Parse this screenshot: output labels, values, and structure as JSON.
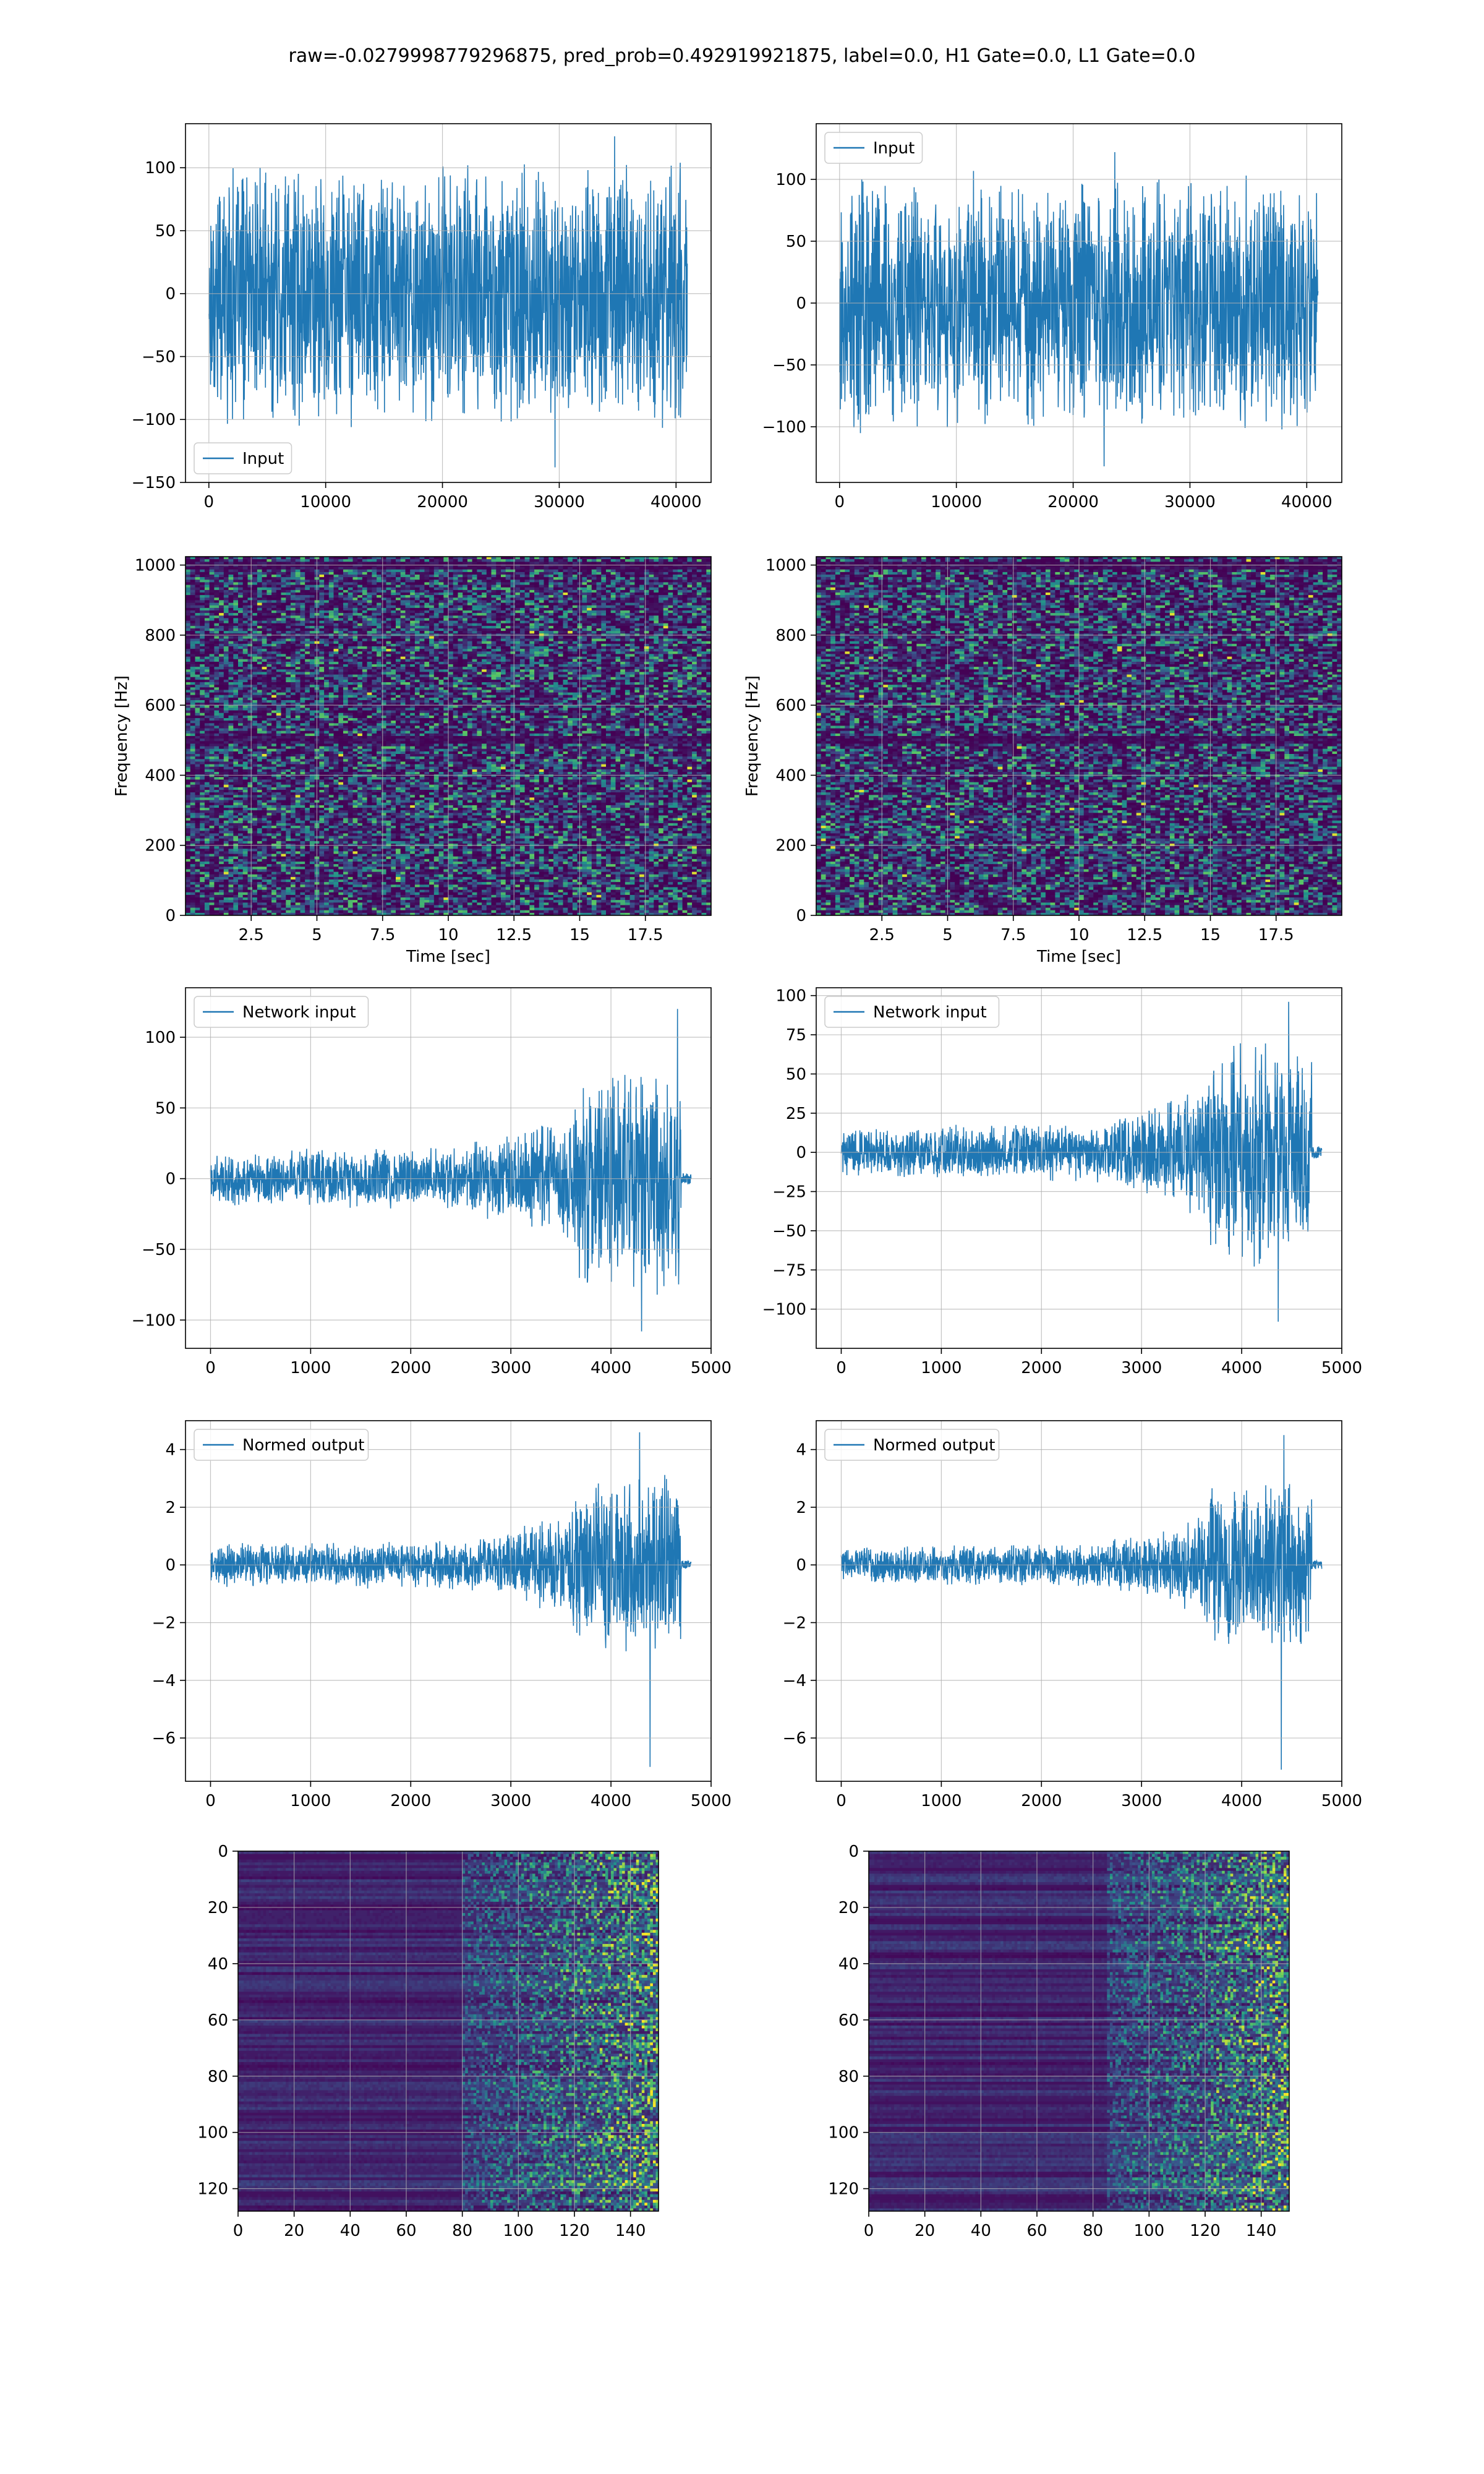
{
  "figure": {
    "suptitle": "raw=-0.0279998779296875, pred_prob=0.492919921875, label=0.0, H1 Gate=0.0, L1 Gate=0.0"
  },
  "colors": {
    "line": "#1f77b4",
    "grid": "#b0b0b0",
    "viridis_low": "#440154",
    "viridis_mid": "#21918c",
    "viridis_high": "#fde725"
  },
  "chart_data": [
    {
      "id": "input-h1",
      "type": "line",
      "grid": true,
      "legend": {
        "label": "Input",
        "loc": "lower left"
      },
      "xlim": [
        -2000,
        43000
      ],
      "ylim": [
        -150,
        135
      ],
      "xticks": [
        0,
        10000,
        20000,
        30000,
        40000
      ],
      "yticks": [
        -150,
        -100,
        -50,
        0,
        50,
        100
      ],
      "signal": {
        "x_start": 0,
        "x_end": 40960,
        "envelope": [
          [
            0,
            100
          ],
          [
            1,
            100
          ]
        ],
        "peak": 125,
        "trough": -138
      }
    },
    {
      "id": "input-l1",
      "type": "line",
      "grid": true,
      "legend": {
        "label": "Input",
        "loc": "upper left"
      },
      "xlim": [
        -2000,
        43000
      ],
      "ylim": [
        -145,
        145
      ],
      "xticks": [
        0,
        10000,
        20000,
        30000,
        40000
      ],
      "yticks": [
        -100,
        -50,
        0,
        50,
        100
      ],
      "signal": {
        "x_start": 0,
        "x_end": 40960,
        "envelope": [
          [
            0,
            100
          ],
          [
            1,
            100
          ]
        ],
        "peak": 122,
        "trough": -132
      }
    },
    {
      "id": "spectrogram-h1",
      "type": "heatmap",
      "grid": true,
      "xlabel": "Time [sec]",
      "ylabel": "Frequency [Hz]",
      "xlim": [
        0,
        20
      ],
      "ylim": [
        0,
        1024
      ],
      "xticks": [
        2.5,
        5.0,
        7.5,
        10.0,
        12.5,
        15.0,
        17.5
      ],
      "yticks": [
        0,
        200,
        400,
        600,
        800,
        1000
      ],
      "colormap": "viridis",
      "dark_bands_hz": [
        500,
        1000
      ]
    },
    {
      "id": "spectrogram-l1",
      "type": "heatmap",
      "grid": true,
      "xlabel": "Time [sec]",
      "ylabel": "Frequency [Hz]",
      "xlim": [
        0,
        20
      ],
      "ylim": [
        0,
        1024
      ],
      "xticks": [
        2.5,
        5.0,
        7.5,
        10.0,
        12.5,
        15.0,
        17.5
      ],
      "yticks": [
        0,
        200,
        400,
        600,
        800,
        1000
      ],
      "colormap": "viridis",
      "dark_bands_hz": [
        500,
        1000
      ]
    },
    {
      "id": "network-input-h1",
      "type": "line",
      "grid": true,
      "legend": {
        "label": "Network input",
        "loc": "upper left"
      },
      "xlim": [
        -250,
        5000
      ],
      "ylim": [
        -120,
        135
      ],
      "xticks": [
        0,
        1000,
        2000,
        3000,
        4000,
        5000
      ],
      "yticks": [
        -100,
        -50,
        0,
        50,
        100
      ],
      "signal": {
        "x_start": 0,
        "x_end": 4800,
        "cut": 4700,
        "tail_amp": 4,
        "envelope": [
          [
            0,
            18
          ],
          [
            2500,
            22
          ],
          [
            3000,
            30
          ],
          [
            3600,
            45
          ],
          [
            3700,
            70
          ],
          [
            4300,
            85
          ],
          [
            4700,
            80
          ]
        ],
        "peak": 120,
        "trough": -108
      }
    },
    {
      "id": "network-input-l1",
      "type": "line",
      "grid": true,
      "legend": {
        "label": "Network input",
        "loc": "upper left"
      },
      "xlim": [
        -250,
        5000
      ],
      "ylim": [
        -125,
        105
      ],
      "xticks": [
        0,
        1000,
        2000,
        3000,
        4000,
        5000
      ],
      "yticks": [
        -100,
        -75,
        -50,
        -25,
        0,
        25,
        50,
        75,
        100
      ],
      "signal": {
        "x_start": 0,
        "x_end": 4800,
        "cut": 4700,
        "tail_amp": 4,
        "envelope": [
          [
            0,
            15
          ],
          [
            2500,
            18
          ],
          [
            3000,
            28
          ],
          [
            3600,
            40
          ],
          [
            3700,
            60
          ],
          [
            4300,
            75
          ],
          [
            4700,
            70
          ]
        ],
        "peak": 96,
        "trough": -108
      }
    },
    {
      "id": "normed-output-h1",
      "type": "line",
      "grid": true,
      "legend": {
        "label": "Normed output",
        "loc": "upper left"
      },
      "xlim": [
        -250,
        5000
      ],
      "ylim": [
        -7.5,
        5.0
      ],
      "xticks": [
        0,
        1000,
        2000,
        3000,
        4000,
        5000
      ],
      "yticks": [
        -6,
        -4,
        -2,
        0,
        2,
        4
      ],
      "signal": {
        "x_start": 0,
        "x_end": 4800,
        "cut": 4700,
        "tail_amp": 0.15,
        "envelope": [
          [
            0,
            0.7
          ],
          [
            2500,
            0.8
          ],
          [
            3000,
            1.1
          ],
          [
            3600,
            1.8
          ],
          [
            3700,
            2.6
          ],
          [
            4300,
            3.2
          ],
          [
            4700,
            3.0
          ]
        ],
        "peak": 4.6,
        "trough": -7.0
      }
    },
    {
      "id": "normed-output-l1",
      "type": "line",
      "grid": true,
      "legend": {
        "label": "Normed output",
        "loc": "upper left"
      },
      "xlim": [
        -250,
        5000
      ],
      "ylim": [
        -7.5,
        5.0
      ],
      "xticks": [
        0,
        1000,
        2000,
        3000,
        4000,
        5000
      ],
      "yticks": [
        -6,
        -4,
        -2,
        0,
        2,
        4
      ],
      "signal": {
        "x_start": 0,
        "x_end": 4800,
        "cut": 4700,
        "tail_amp": 0.15,
        "envelope": [
          [
            0,
            0.6
          ],
          [
            2500,
            0.7
          ],
          [
            3000,
            1.0
          ],
          [
            3600,
            1.6
          ],
          [
            3700,
            2.5
          ],
          [
            4300,
            3.2
          ],
          [
            4700,
            2.9
          ]
        ],
        "peak": 4.5,
        "trough": -7.1
      }
    },
    {
      "id": "feature-map-h1",
      "type": "heatmap",
      "grid": true,
      "xlim": [
        0,
        150
      ],
      "ylim": [
        128,
        0
      ],
      "xticks": [
        0,
        20,
        40,
        60,
        80,
        100,
        120,
        140
      ],
      "yticks": [
        0,
        20,
        40,
        60,
        80,
        100,
        120
      ],
      "colormap": "viridis",
      "shape": [
        128,
        150
      ],
      "onset_col": 80
    },
    {
      "id": "feature-map-l1",
      "type": "heatmap",
      "grid": true,
      "xlim": [
        0,
        150
      ],
      "ylim": [
        128,
        0
      ],
      "xticks": [
        0,
        20,
        40,
        60,
        80,
        100,
        120,
        140
      ],
      "yticks": [
        0,
        20,
        40,
        60,
        80,
        100,
        120
      ],
      "colormap": "viridis",
      "shape": [
        128,
        150
      ],
      "onset_col": 85
    }
  ]
}
